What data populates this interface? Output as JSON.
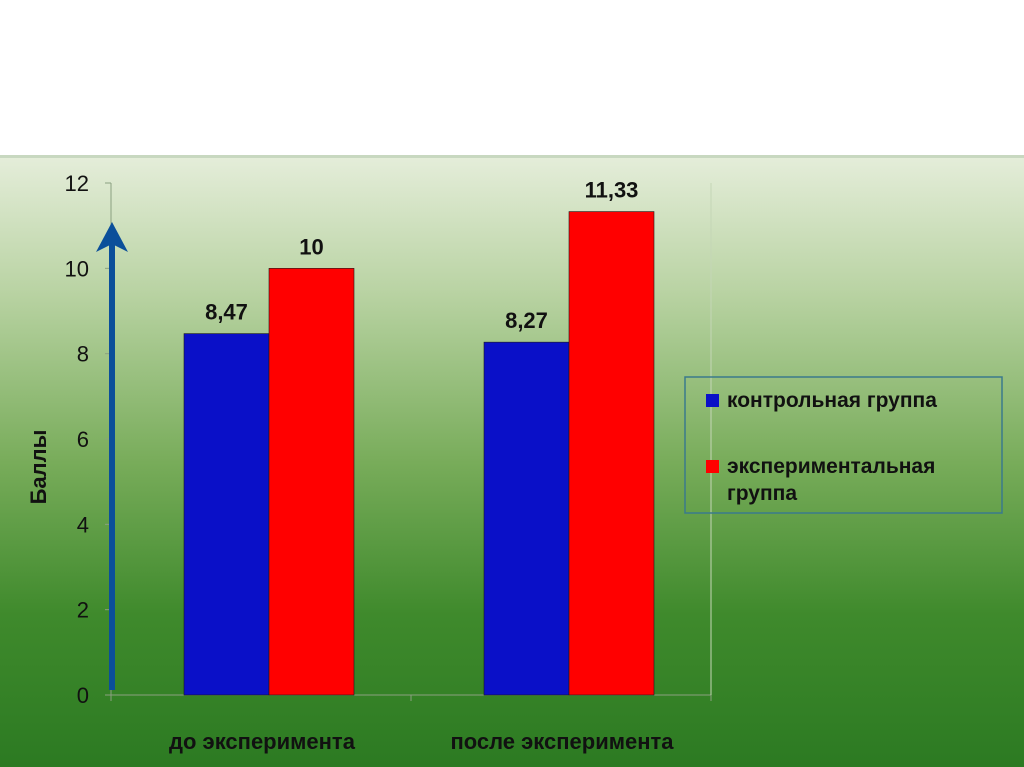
{
  "chart_data": {
    "type": "bar",
    "categories": [
      "до эксперимента",
      "после эксперимента"
    ],
    "series": [
      {
        "name": "контрольная группа",
        "values": [
          8.47,
          8.27
        ],
        "labels": [
          "8,47",
          "8,27"
        ],
        "color": "#0a10c8"
      },
      {
        "name": "экспериментальная группа",
        "values": [
          10,
          11.33
        ],
        "labels": [
          "10",
          "11,33"
        ],
        "color": "#ff0000"
      }
    ],
    "ylabel": "Баллы",
    "ylim": [
      0,
      12
    ],
    "yticks": [
      0,
      2,
      4,
      6,
      8,
      10,
      12
    ],
    "ytick_labels": [
      "0",
      "2",
      "4",
      "6",
      "8",
      "10",
      "12"
    ],
    "legend": {
      "placement": "right",
      "entries": [
        {
          "lines": [
            "контрольная группа"
          ]
        },
        {
          "lines": [
            "экспериментальная",
            "группа"
          ]
        }
      ]
    },
    "axis_arrow_color": "#0b4f9a"
  }
}
